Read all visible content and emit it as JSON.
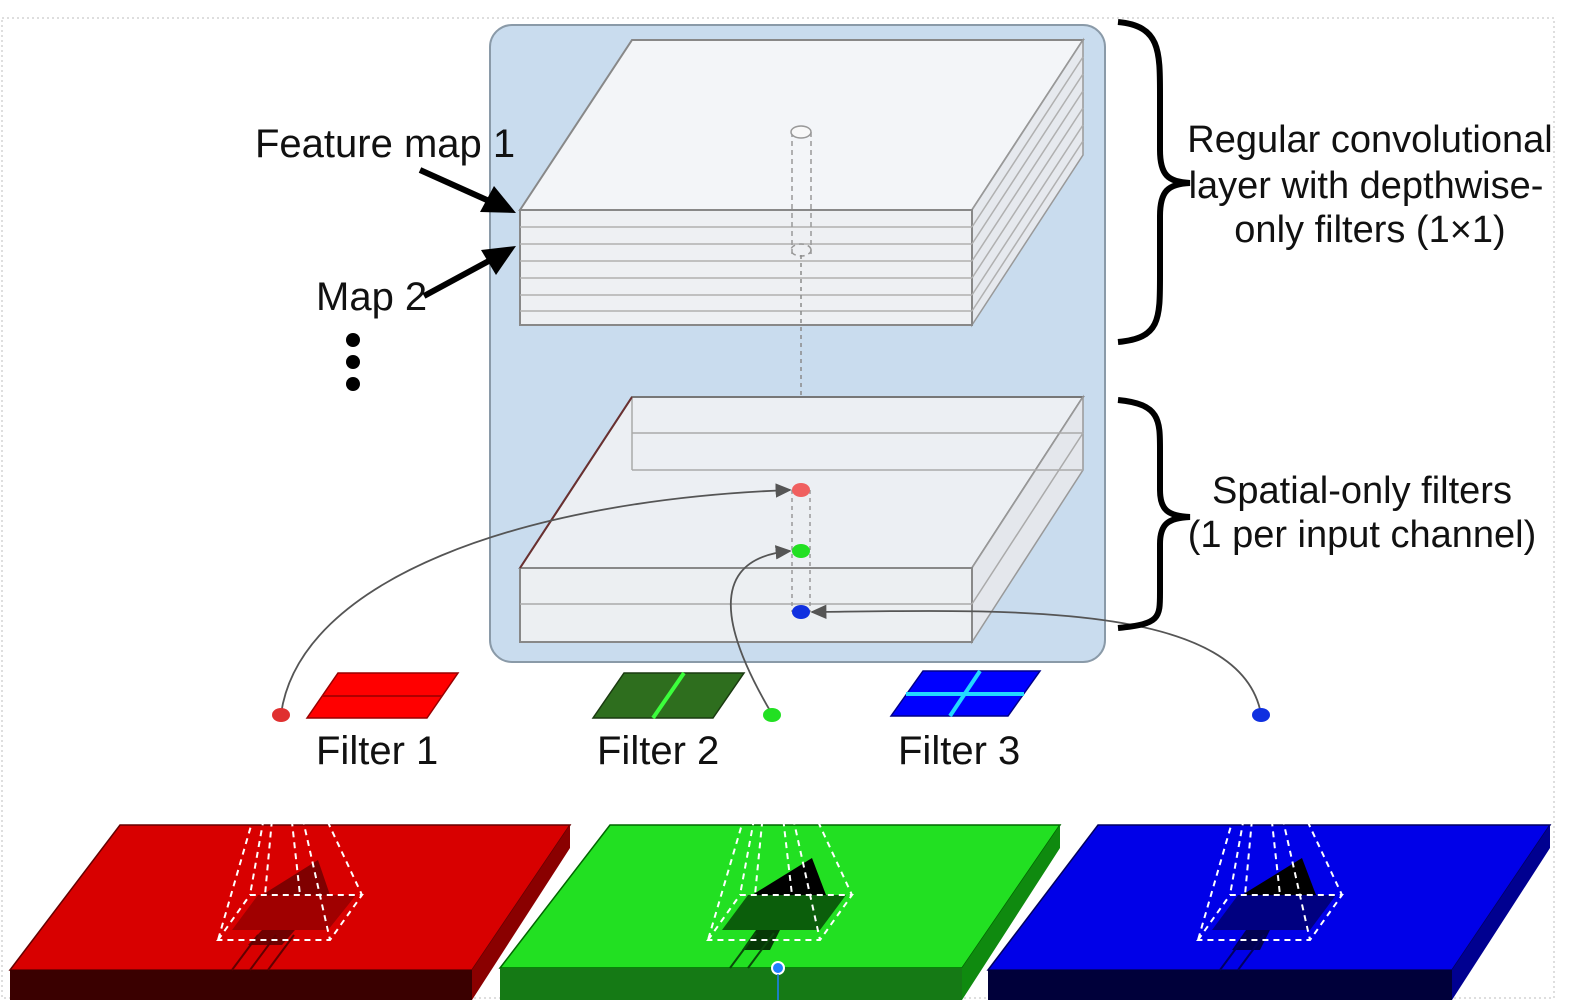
{
  "labels": {
    "feature_map_1": "Feature map 1",
    "map_2": "Map 2",
    "regular_layer_line1": "Regular convolutional",
    "regular_layer_line2": "layer with depthwise-",
    "regular_layer_line3": "only filters (1×1)",
    "spatial_line1": "Spatial-only filters",
    "spatial_line2": "(1 per input channel)",
    "filter_1": "Filter 1",
    "filter_2": "Filter 2",
    "filter_3": "Filter 3"
  },
  "colors": {
    "panel_fill": "#c9dcee",
    "panel_stroke": "#8a9aa8",
    "red_channel": "#e00000",
    "green_channel": "#22e022",
    "blue_channel": "#0000ee",
    "filter1": "#ff0000",
    "filter2": "#2e6e1e",
    "filter2_line": "#3cff3c",
    "filter3": "#0000ff",
    "filter3_cross": "#22d8ff",
    "dot_red": "#f06060",
    "dot_green": "#22e022",
    "dot_blue": "#1030e0"
  },
  "icons": {
    "brace": "curly-brace-icon",
    "arrow": "arrow-icon",
    "ellipsis": "vertical-ellipsis-icon"
  }
}
